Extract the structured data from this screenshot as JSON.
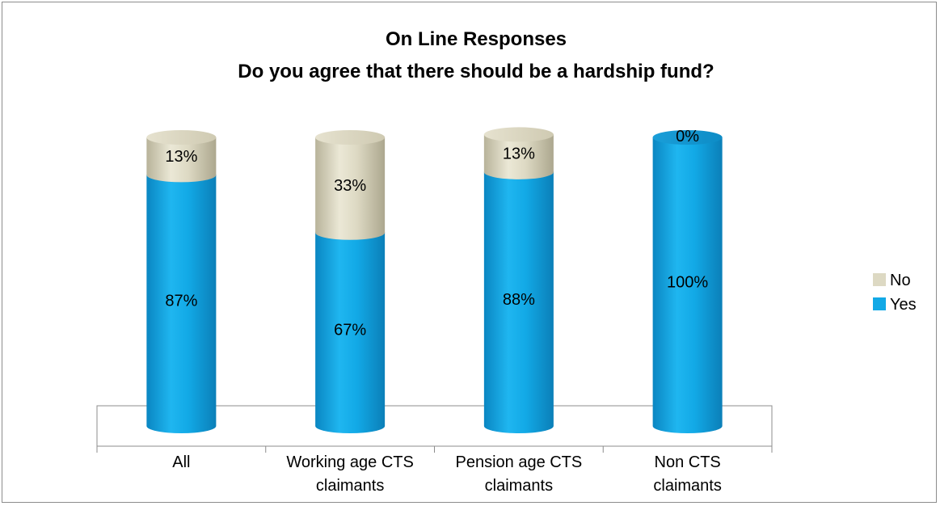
{
  "chart_data": {
    "type": "bar",
    "stacked": true,
    "style": "3d-cylinder",
    "title": "On  Line Responses",
    "subtitle": "Do you agree that there should be a hardship fund?",
    "categories": [
      [
        "All"
      ],
      [
        "Working age CTS",
        "claimants"
      ],
      [
        "Pension age CTS",
        "claimants"
      ],
      [
        "Non CTS",
        "claimants"
      ]
    ],
    "series": [
      {
        "name": "Yes",
        "values": [
          87,
          67,
          88,
          100
        ],
        "labels": [
          "87%",
          "67%",
          "88%",
          "100%"
        ],
        "color": "#12A9E6"
      },
      {
        "name": "No",
        "values": [
          13,
          33,
          13,
          0
        ],
        "labels": [
          "13%",
          "33%",
          "13%",
          "0%"
        ],
        "color": "#DDD9C3"
      }
    ],
    "ylim": [
      0,
      100
    ],
    "legend": "right",
    "grid": false
  }
}
